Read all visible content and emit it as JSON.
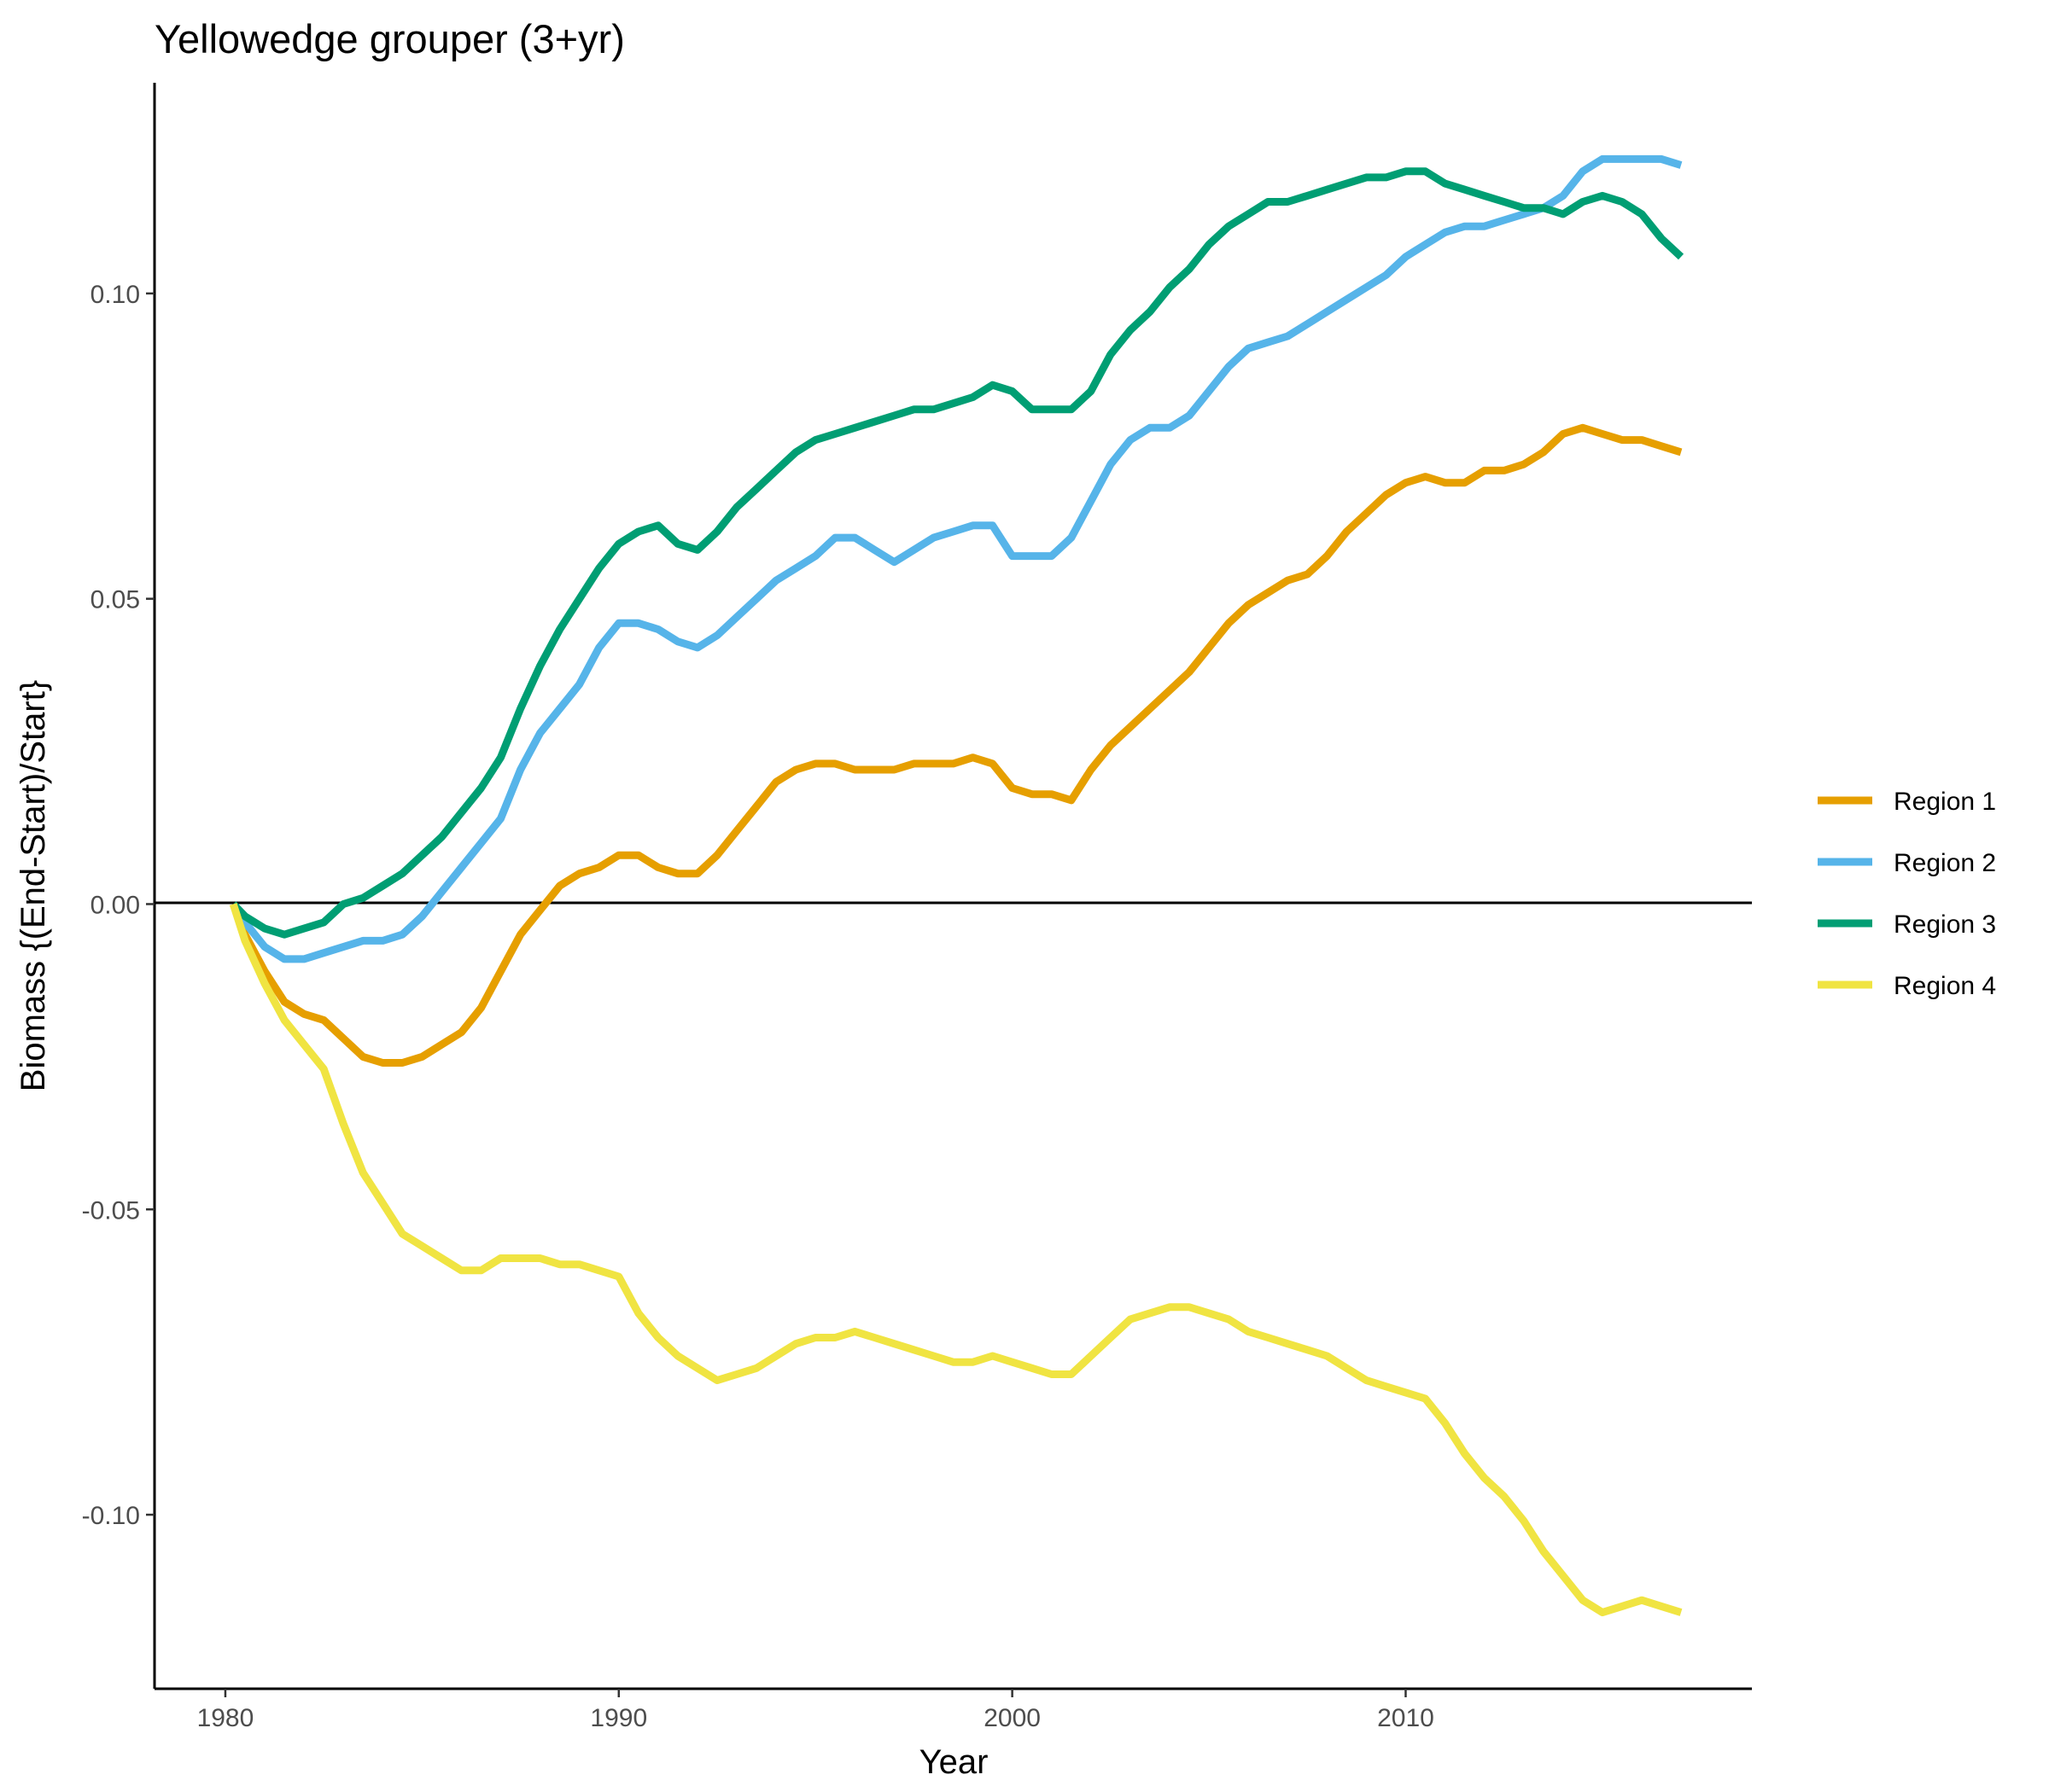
{
  "chart_data": {
    "type": "line",
    "title": "Yellowedge grouper (3+yr)",
    "xlabel": "Year",
    "ylabel": "Biomass {(End-Start)/Start}",
    "xlim": [
      1978.2,
      2018.8
    ],
    "ylim": [
      -0.1285,
      0.1345
    ],
    "xticks": [
      1980,
      1990,
      2000,
      2010
    ],
    "xtick_labels": [
      "1980",
      "1990",
      "2000",
      "2010"
    ],
    "yticks": [
      -0.1,
      -0.05,
      0.0,
      0.05,
      0.1
    ],
    "ytick_labels": [
      "-0.10",
      "-0.05",
      "0.00",
      "0.05",
      "0.10"
    ],
    "reference_line_y": 0,
    "grid": false,
    "legend_position": "right",
    "series": [
      {
        "name": "Region 1",
        "color": "#E69F00",
        "x": [
          1980.2,
          1980.5,
          1981,
          1981.5,
          1982,
          1982.5,
          1983,
          1983.5,
          1984,
          1984.5,
          1985,
          1985.5,
          1986,
          1986.5,
          1987,
          1987.5,
          1988,
          1988.5,
          1989,
          1989.5,
          1990,
          1990.5,
          1991,
          1991.5,
          1992,
          1992.5,
          1993,
          1993.5,
          1994,
          1994.5,
          1995,
          1995.5,
          1996,
          1996.5,
          1997,
          1997.5,
          1998,
          1998.5,
          1999,
          1999.5,
          2000,
          2000.5,
          2001,
          2001.5,
          2002,
          2002.5,
          2003,
          2003.5,
          2004,
          2004.5,
          2005,
          2005.5,
          2006,
          2006.5,
          2007,
          2007.5,
          2008,
          2008.5,
          2009,
          2009.5,
          2010,
          2010.5,
          2011,
          2011.5,
          2012,
          2012.5,
          2013,
          2013.5,
          2014,
          2014.5,
          2015,
          2015.5,
          2016,
          2016.5,
          2017
        ],
        "y": [
          0.0,
          -0.005,
          -0.011,
          -0.016,
          -0.018,
          -0.019,
          -0.022,
          -0.025,
          -0.026,
          -0.026,
          -0.025,
          -0.023,
          -0.021,
          -0.017,
          -0.011,
          -0.005,
          -0.001,
          0.003,
          0.005,
          0.006,
          0.008,
          0.008,
          0.006,
          0.005,
          0.005,
          0.008,
          0.012,
          0.016,
          0.02,
          0.022,
          0.023,
          0.023,
          0.022,
          0.022,
          0.022,
          0.023,
          0.023,
          0.023,
          0.024,
          0.023,
          0.019,
          0.018,
          0.018,
          0.017,
          0.022,
          0.026,
          0.029,
          0.032,
          0.035,
          0.038,
          0.042,
          0.046,
          0.049,
          0.051,
          0.053,
          0.054,
          0.057,
          0.061,
          0.064,
          0.067,
          0.069,
          0.07,
          0.069,
          0.069,
          0.071,
          0.071,
          0.072,
          0.074,
          0.077,
          0.078,
          0.077,
          0.076,
          0.076,
          0.075,
          0.074
        ]
      },
      {
        "name": "Region 2",
        "color": "#56B4E9",
        "x": [
          1980.2,
          1980.5,
          1981,
          1981.5,
          1982,
          1982.5,
          1983,
          1983.5,
          1984,
          1984.5,
          1985,
          1985.5,
          1986,
          1986.5,
          1987,
          1987.5,
          1988,
          1988.5,
          1989,
          1989.5,
          1990,
          1990.5,
          1991,
          1991.5,
          1992,
          1992.5,
          1993,
          1993.5,
          1994,
          1994.5,
          1995,
          1995.5,
          1996,
          1996.5,
          1997,
          1997.5,
          1998,
          1998.5,
          1999,
          1999.5,
          2000,
          2000.5,
          2001,
          2001.5,
          2002,
          2002.5,
          2003,
          2003.5,
          2004,
          2004.5,
          2005,
          2005.5,
          2006,
          2006.5,
          2007,
          2007.5,
          2008,
          2008.5,
          2009,
          2009.5,
          2010,
          2010.5,
          2011,
          2011.5,
          2012,
          2012.5,
          2013,
          2013.5,
          2014,
          2014.5,
          2015,
          2015.5,
          2016,
          2016.5,
          2017
        ],
        "y": [
          0.0,
          -0.003,
          -0.007,
          -0.009,
          -0.009,
          -0.008,
          -0.007,
          -0.006,
          -0.006,
          -0.005,
          -0.002,
          0.002,
          0.006,
          0.01,
          0.014,
          0.022,
          0.028,
          0.032,
          0.036,
          0.042,
          0.046,
          0.046,
          0.045,
          0.043,
          0.042,
          0.044,
          0.047,
          0.05,
          0.053,
          0.055,
          0.057,
          0.06,
          0.06,
          0.058,
          0.056,
          0.058,
          0.06,
          0.061,
          0.062,
          0.062,
          0.057,
          0.057,
          0.057,
          0.06,
          0.066,
          0.072,
          0.076,
          0.078,
          0.078,
          0.08,
          0.084,
          0.088,
          0.091,
          0.092,
          0.093,
          0.095,
          0.097,
          0.099,
          0.101,
          0.103,
          0.106,
          0.108,
          0.11,
          0.111,
          0.111,
          0.112,
          0.113,
          0.114,
          0.116,
          0.12,
          0.122,
          0.122,
          0.122,
          0.122,
          0.121
        ]
      },
      {
        "name": "Region 3",
        "color": "#009E73",
        "x": [
          1980.2,
          1980.5,
          1981,
          1981.5,
          1982,
          1982.5,
          1983,
          1983.5,
          1984,
          1984.5,
          1985,
          1985.5,
          1986,
          1986.5,
          1987,
          1987.5,
          1988,
          1988.5,
          1989,
          1989.5,
          1990,
          1990.5,
          1991,
          1991.5,
          1992,
          1992.5,
          1993,
          1993.5,
          1994,
          1994.5,
          1995,
          1995.5,
          1996,
          1996.5,
          1997,
          1997.5,
          1998,
          1998.5,
          1999,
          1999.5,
          2000,
          2000.5,
          2001,
          2001.5,
          2002,
          2002.5,
          2003,
          2003.5,
          2004,
          2004.5,
          2005,
          2005.5,
          2006,
          2006.5,
          2007,
          2007.5,
          2008,
          2008.5,
          2009,
          2009.5,
          2010,
          2010.5,
          2011,
          2011.5,
          2012,
          2012.5,
          2013,
          2013.5,
          2014,
          2014.5,
          2015,
          2015.5,
          2016,
          2016.5,
          2017
        ],
        "y": [
          0.0,
          -0.002,
          -0.004,
          -0.005,
          -0.004,
          -0.003,
          0.0,
          0.001,
          0.003,
          0.005,
          0.008,
          0.011,
          0.015,
          0.019,
          0.024,
          0.032,
          0.039,
          0.045,
          0.05,
          0.055,
          0.059,
          0.061,
          0.062,
          0.059,
          0.058,
          0.061,
          0.065,
          0.068,
          0.071,
          0.074,
          0.076,
          0.077,
          0.078,
          0.079,
          0.08,
          0.081,
          0.081,
          0.082,
          0.083,
          0.085,
          0.084,
          0.081,
          0.081,
          0.081,
          0.084,
          0.09,
          0.094,
          0.097,
          0.101,
          0.104,
          0.108,
          0.111,
          0.113,
          0.115,
          0.115,
          0.116,
          0.117,
          0.118,
          0.119,
          0.119,
          0.12,
          0.12,
          0.118,
          0.117,
          0.116,
          0.115,
          0.114,
          0.114,
          0.113,
          0.115,
          0.116,
          0.115,
          0.113,
          0.109,
          0.106
        ]
      },
      {
        "name": "Region 4",
        "color": "#F0E442",
        "x": [
          1980.2,
          1980.5,
          1981,
          1981.5,
          1982,
          1982.5,
          1983,
          1983.5,
          1984,
          1984.5,
          1985,
          1985.5,
          1986,
          1986.5,
          1987,
          1987.5,
          1988,
          1988.5,
          1989,
          1989.5,
          1990,
          1990.5,
          1991,
          1991.5,
          1992,
          1992.5,
          1993,
          1993.5,
          1994,
          1994.5,
          1995,
          1995.5,
          1996,
          1996.5,
          1997,
          1997.5,
          1998,
          1998.5,
          1999,
          1999.5,
          2000,
          2000.5,
          2001,
          2001.5,
          2002,
          2002.5,
          2003,
          2003.5,
          2004,
          2004.5,
          2005,
          2005.5,
          2006,
          2006.5,
          2007,
          2007.5,
          2008,
          2008.5,
          2009,
          2009.5,
          2010,
          2010.5,
          2011,
          2011.5,
          2012,
          2012.5,
          2013,
          2013.5,
          2014,
          2014.5,
          2015,
          2015.5,
          2016,
          2016.5,
          2017
        ],
        "y": [
          0.0,
          -0.006,
          -0.013,
          -0.019,
          -0.023,
          -0.027,
          -0.036,
          -0.044,
          -0.049,
          -0.054,
          -0.056,
          -0.058,
          -0.06,
          -0.06,
          -0.058,
          -0.058,
          -0.058,
          -0.059,
          -0.059,
          -0.06,
          -0.061,
          -0.067,
          -0.071,
          -0.074,
          -0.076,
          -0.078,
          -0.077,
          -0.076,
          -0.074,
          -0.072,
          -0.071,
          -0.071,
          -0.07,
          -0.071,
          -0.072,
          -0.073,
          -0.074,
          -0.075,
          -0.075,
          -0.074,
          -0.075,
          -0.076,
          -0.077,
          -0.077,
          -0.074,
          -0.071,
          -0.068,
          -0.067,
          -0.066,
          -0.066,
          -0.067,
          -0.068,
          -0.07,
          -0.071,
          -0.072,
          -0.073,
          -0.074,
          -0.076,
          -0.078,
          -0.079,
          -0.08,
          -0.081,
          -0.085,
          -0.09,
          -0.094,
          -0.097,
          -0.101,
          -0.106,
          -0.11,
          -0.114,
          -0.116,
          -0.115,
          -0.114,
          -0.115,
          -0.116
        ]
      }
    ]
  }
}
